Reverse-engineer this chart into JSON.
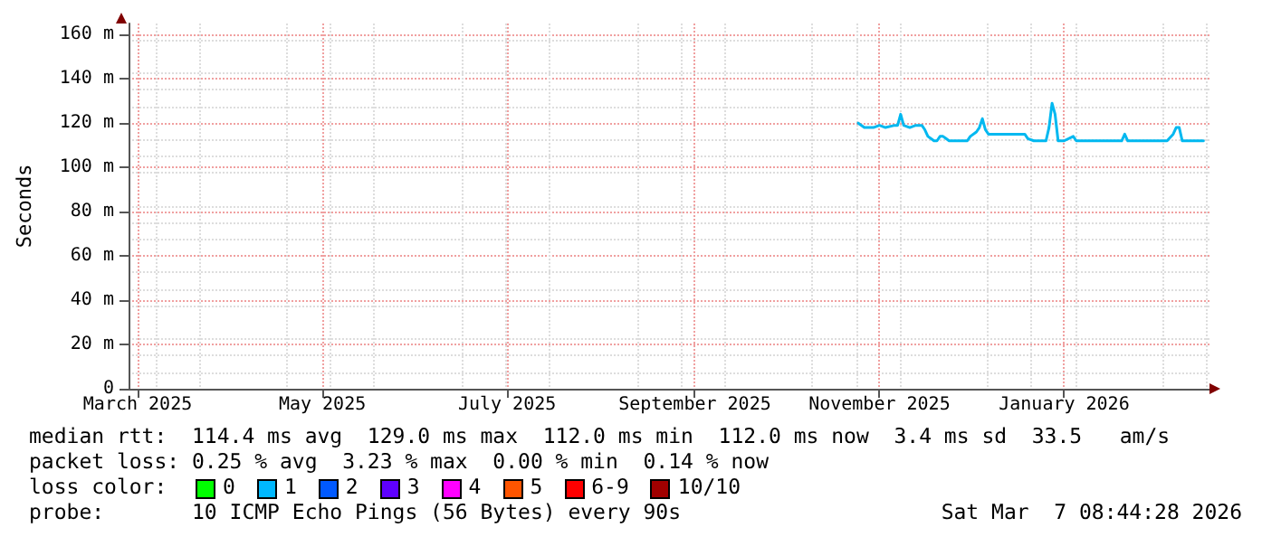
{
  "chart_data": {
    "type": "line",
    "ylabel": "Seconds",
    "xlim": [
      "2025-03-12",
      "2026-03-04"
    ],
    "xticks": [
      {
        "value": "2025-03-15",
        "label": "March 2025"
      },
      {
        "value": "2025-05-15",
        "label": "May 2025"
      },
      {
        "value": "2025-07-15",
        "label": "July 2025"
      },
      {
        "value": "2025-09-15",
        "label": "September 2025"
      },
      {
        "value": "2025-11-15",
        "label": "November 2025"
      },
      {
        "value": "2026-01-15",
        "label": "January 2026"
      }
    ],
    "ylim": [
      0,
      165
    ],
    "yticks": [
      {
        "value": 0,
        "label": "0"
      },
      {
        "value": 20,
        "label": "20 m"
      },
      {
        "value": 40,
        "label": "40 m"
      },
      {
        "value": 60,
        "label": "60 m"
      },
      {
        "value": 80,
        "label": "80 m"
      },
      {
        "value": 100,
        "label": "100 m"
      },
      {
        "value": 120,
        "label": "120 m"
      },
      {
        "value": 140,
        "label": "140 m"
      },
      {
        "value": 160,
        "label": "160 m"
      }
    ],
    "grid": true,
    "marker": "none",
    "line_style": "solid",
    "series": [
      {
        "color": "#00b8f0",
        "x": [
          "2025-11-08",
          "2025-11-10",
          "2025-11-11",
          "2025-11-13",
          "2025-11-15",
          "2025-11-17",
          "2025-11-20",
          "2025-11-21",
          "2025-11-22",
          "2025-11-23",
          "2025-11-25",
          "2025-11-27",
          "2025-11-29",
          "2025-11-30",
          "2025-12-01",
          "2025-12-02",
          "2025-12-03",
          "2025-12-04",
          "2025-12-05",
          "2025-12-06",
          "2025-12-07",
          "2025-12-08",
          "2025-12-10",
          "2025-12-14",
          "2025-12-15",
          "2025-12-17",
          "2025-12-18",
          "2025-12-19",
          "2025-12-20",
          "2025-12-21",
          "2025-12-24",
          "2025-12-30",
          "2026-01-02",
          "2026-01-03",
          "2026-01-05",
          "2026-01-09",
          "2026-01-10",
          "2026-01-11",
          "2026-01-12",
          "2026-01-13",
          "2026-01-15",
          "2026-01-18",
          "2026-01-19",
          "2026-01-24",
          "2026-01-28",
          "2026-02-03",
          "2026-02-04",
          "2026-02-05",
          "2026-02-07",
          "2026-02-18",
          "2026-02-20",
          "2026-02-21",
          "2026-02-22",
          "2026-02-23",
          "2026-03-02"
        ],
        "values": [
          120,
          118,
          118,
          118,
          119,
          118,
          119,
          119,
          124,
          119,
          118,
          119,
          119,
          117,
          114,
          113,
          112,
          112,
          114,
          114,
          113,
          112,
          112,
          112,
          114,
          116,
          118,
          122,
          117,
          115,
          115,
          115,
          115,
          113,
          112,
          112,
          118,
          129,
          124,
          112,
          112,
          114,
          112,
          112,
          112,
          112,
          115,
          112,
          112,
          112,
          115,
          118,
          118,
          112,
          112
        ]
      }
    ],
    "annotations": [
      "median rtt:  114.4 ms avg  129.0 ms max  112.0 ms min  112.0 ms now  3.4 ms sd  33.5   am/s",
      "packet loss: 0.25 % avg  3.23 % max  0.00 % min  0.14 % now",
      "loss color:",
      "0",
      "1",
      "2",
      "3",
      "4",
      "5",
      "6-9",
      "10/10",
      "probe:       10 ICMP Echo Pings (56 Bytes) every 90s",
      "Sat Mar  7 08:44:28 2026"
    ]
  }
}
